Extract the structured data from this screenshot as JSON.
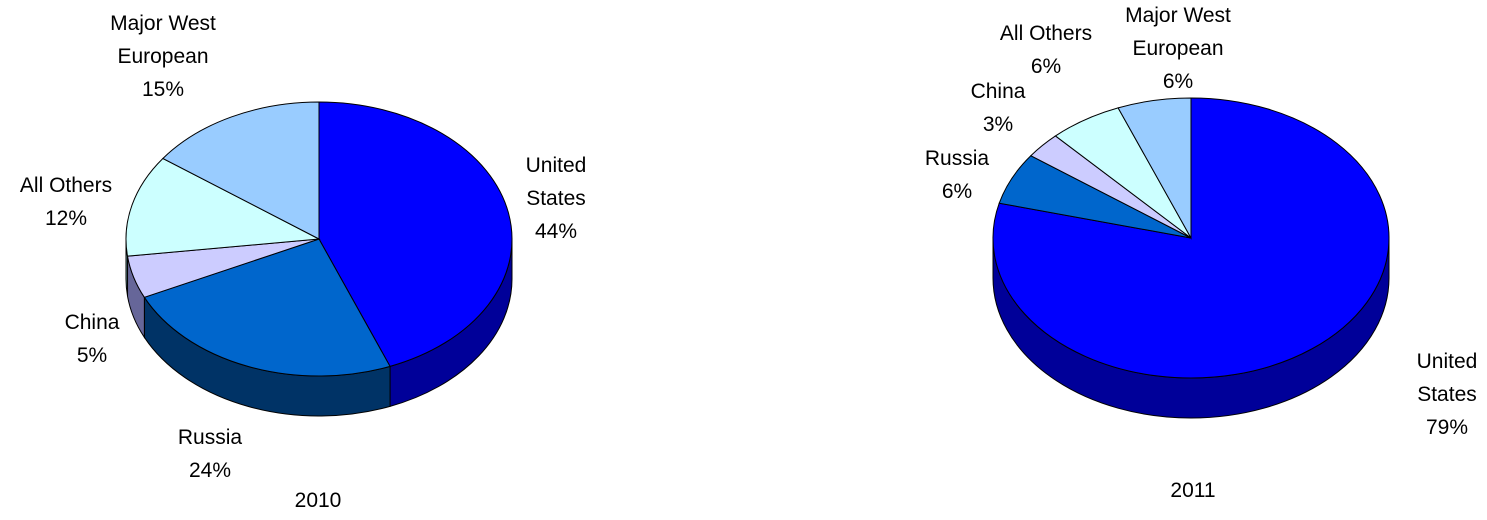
{
  "chart_data": [
    {
      "type": "pie",
      "caption": "2010",
      "slices": [
        {
          "name": "United States",
          "label_lines": [
            "United",
            "States"
          ],
          "value": 44,
          "value_label": "44%",
          "color": "#0000ff",
          "side_color": "#000099"
        },
        {
          "name": "Russia",
          "label_lines": [
            "Russia"
          ],
          "value": 24,
          "value_label": "24%",
          "color": "#0066cc",
          "side_color": "#003366"
        },
        {
          "name": "China",
          "label_lines": [
            "China"
          ],
          "value": 5,
          "value_label": "5%",
          "color": "#ccccff",
          "side_color": "#666699"
        },
        {
          "name": "All Others",
          "label_lines": [
            "All Others"
          ],
          "value": 12,
          "value_label": "12%",
          "color": "#ccffff",
          "side_color": "#669999"
        },
        {
          "name": "Major West European",
          "label_lines": [
            "Major West",
            "European"
          ],
          "value": 15,
          "value_label": "15%",
          "color": "#99ccff",
          "side_color": "#4d6680"
        }
      ]
    },
    {
      "type": "pie",
      "caption": "2011",
      "slices": [
        {
          "name": "United States",
          "label_lines": [
            "United",
            "States"
          ],
          "value": 79,
          "value_label": "79%",
          "color": "#0000ff",
          "side_color": "#000099"
        },
        {
          "name": "Russia",
          "label_lines": [
            "Russia"
          ],
          "value": 6,
          "value_label": "6%",
          "color": "#0066cc",
          "side_color": "#003366"
        },
        {
          "name": "China",
          "label_lines": [
            "China"
          ],
          "value": 3,
          "value_label": "3%",
          "color": "#ccccff",
          "side_color": "#666699"
        },
        {
          "name": "All Others",
          "label_lines": [
            "All Others"
          ],
          "value": 6,
          "value_label": "6%",
          "color": "#ccffff",
          "side_color": "#669999"
        },
        {
          "name": "Major West European",
          "label_lines": [
            "Major West",
            "European"
          ],
          "value": 6,
          "value_label": "6%",
          "color": "#99ccff",
          "side_color": "#4d6680"
        }
      ]
    }
  ]
}
